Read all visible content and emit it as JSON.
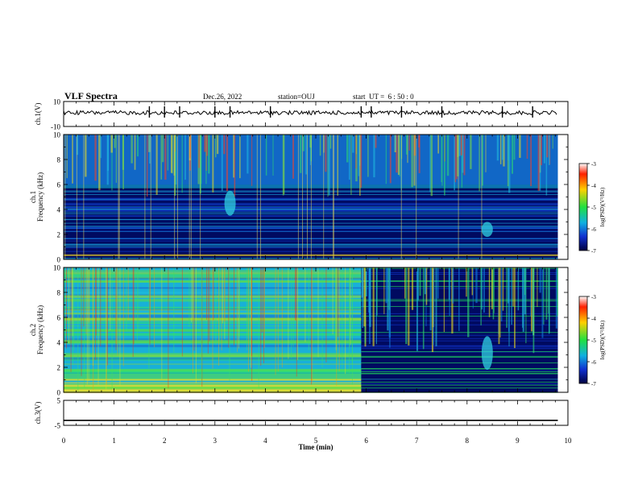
{
  "header": {
    "title": "VLF Spectra",
    "date": "Dec.26, 2022",
    "station": "station=OUJ",
    "start": "start  UT =  6 : 50 : 0"
  },
  "colors": {
    "axis": "#000000",
    "background": "#ffffff"
  },
  "chart_data": [
    {
      "type": "line",
      "panel": "ch.1 waveform",
      "ylabel": "ch.1(V)",
      "ylim": [
        -10,
        10
      ],
      "yticks": [
        "10",
        "-10"
      ],
      "x": [
        0,
        1,
        2,
        3,
        4,
        5,
        6,
        7,
        8,
        9,
        9.8
      ],
      "values": [
        1,
        1,
        1,
        1,
        1,
        1,
        1,
        1,
        1,
        1,
        1
      ],
      "spikes_x": [
        1.7,
        2.0,
        2.3,
        3.0,
        3.3,
        4.1,
        5.9,
        6.1,
        6.7,
        7.5,
        8.7,
        9.3
      ]
    },
    {
      "type": "heatmap",
      "panel": "ch.1 spectrogram",
      "ylabel": "ch.1\nFrequency (kHz)",
      "ylim": [
        0,
        10
      ],
      "yticks": [
        "0",
        "2",
        "4",
        "6",
        "8",
        "10"
      ],
      "xlim": [
        0,
        10
      ],
      "colorbar": {
        "label": "log(PSD)(V²/Hz)",
        "range": [
          -7,
          -3
        ],
        "ticks": [
          "-3",
          "-4",
          "-5",
          "-6",
          "-7"
        ]
      },
      "features": [
        {
          "time_min": 3.3,
          "freq_khz": [
            3.5,
            5.5
          ]
        },
        {
          "time_min": 8.4,
          "freq_khz": [
            1.8,
            3.0
          ]
        }
      ]
    },
    {
      "type": "heatmap",
      "panel": "ch.2 spectrogram",
      "ylabel": "ch.2\nFrequency (kHz)",
      "ylim": [
        0,
        10
      ],
      "yticks": [
        "0",
        "2",
        "4",
        "6",
        "8",
        "10"
      ],
      "xlim": [
        0,
        10
      ],
      "colorbar": {
        "label": "log(PSD)(V²/Hz)",
        "range": [
          -7,
          -3
        ],
        "ticks": [
          "-3",
          "-4",
          "-5",
          "-6",
          "-7"
        ]
      },
      "regime_change_min": 5.9,
      "features": [
        {
          "time_min": 8.4,
          "freq_khz": [
            1.8,
            4.5
          ]
        }
      ]
    },
    {
      "type": "line",
      "panel": "ch.3 waveform",
      "ylabel": "ch.3(V)",
      "ylim": [
        -5,
        5
      ],
      "yticks": [
        "5",
        "-5"
      ],
      "x": [
        0,
        9.8
      ],
      "values": [
        -3,
        -3
      ]
    }
  ],
  "xaxis": {
    "label": "Time (min)",
    "ticks": [
      "0",
      "1",
      "2",
      "3",
      "4",
      "5",
      "6",
      "7",
      "8",
      "9",
      "10"
    ],
    "xlim": [
      0,
      10
    ]
  }
}
